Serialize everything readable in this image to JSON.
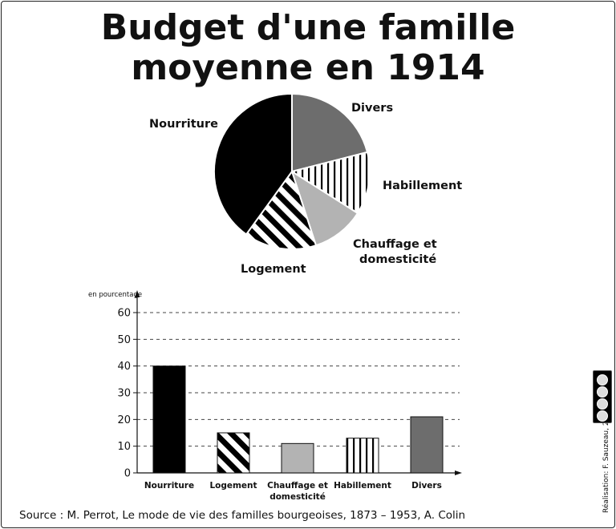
{
  "title_line1": "Budget d'une famille",
  "title_line2": "moyenne en 1914",
  "source": "Source : M. Perrot, Le mode de vie des familles bourgeoises, 1873 – 1953, A. Colin",
  "credit": "Réalisation: F. Sauzeau, 2019",
  "license_badge": "cc-by-nc-sa",
  "colors": {
    "nourriture": "#000000",
    "divers": "#6d6d6d",
    "chauffage": "#b3b3b3",
    "stripe": "#000000",
    "background": "#ffffff"
  },
  "chart_data": [
    {
      "type": "pie",
      "title": "",
      "slices": [
        {
          "label": "Divers",
          "value": 21,
          "fill": "solid-dark-gray"
        },
        {
          "label": "Habillement",
          "value": 13,
          "fill": "vertical-stripes"
        },
        {
          "label": "Chauffage et domesticité",
          "label_lines": [
            "Chauffage et",
            "domesticité"
          ],
          "value": 11,
          "fill": "solid-light-gray"
        },
        {
          "label": "Logement",
          "value": 15,
          "fill": "diagonal-stripes"
        },
        {
          "label": "Nourriture",
          "value": 40,
          "fill": "solid-black"
        }
      ]
    },
    {
      "type": "bar",
      "ylabel": "en pourcentage",
      "ylim": [
        0,
        60
      ],
      "yticks": [
        0,
        10,
        20,
        30,
        40,
        50,
        60
      ],
      "grid": "dashed-horizontal",
      "categories": [
        "Nourriture",
        "Logement",
        "Chauffage et domesticité",
        "Habillement",
        "Divers"
      ],
      "category_lines": [
        [
          "Nourriture"
        ],
        [
          "Logement"
        ],
        [
          "Chauffage et",
          "domesticité"
        ],
        [
          "Habillement"
        ],
        [
          "Divers"
        ]
      ],
      "values": [
        40,
        15,
        11,
        13,
        21
      ],
      "fills": [
        "solid-black",
        "diagonal-stripes",
        "solid-light-gray",
        "vertical-stripes",
        "solid-dark-gray"
      ]
    }
  ]
}
